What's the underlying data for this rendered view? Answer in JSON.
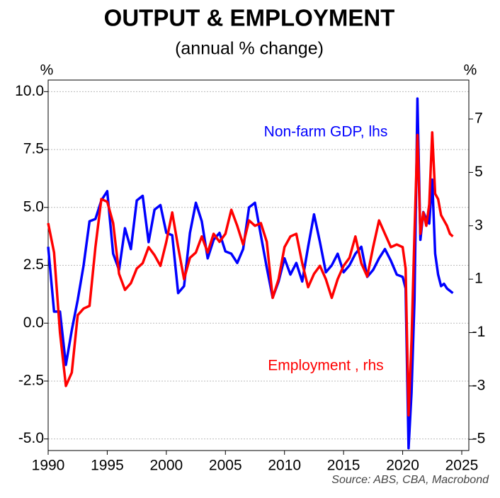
{
  "chart_data": {
    "type": "line",
    "title": "OUTPUT & EMPLOYMENT",
    "subtitle": "(annual % change)",
    "y_unit": "%",
    "y2_unit": "%",
    "source": "Source: ABS, CBA, Macrobond",
    "grid": true,
    "x": [
      1990,
      1990.5,
      1991,
      1991.5,
      1992,
      1992.5,
      1993,
      1993.5,
      1994,
      1994.5,
      1995,
      1995.5,
      1996,
      1996.5,
      1997,
      1997.5,
      1998,
      1998.5,
      1999,
      1999.5,
      2000,
      2000.5,
      2001,
      2001.5,
      2002,
      2002.5,
      2003,
      2003.5,
      2004,
      2004.5,
      2005,
      2005.5,
      2006,
      2006.5,
      2007,
      2007.5,
      2008,
      2008.5,
      2009,
      2009.5,
      2010,
      2010.5,
      2011,
      2011.5,
      2012,
      2012.5,
      2013,
      2013.5,
      2014,
      2014.5,
      2015,
      2015.5,
      2016,
      2016.5,
      2017,
      2017.5,
      2018,
      2018.5,
      2019,
      2019.5,
      2020,
      2020.25,
      2020.5,
      2020.75,
      2021,
      2021.25,
      2021.5,
      2021.75,
      2022,
      2022.25,
      2022.5,
      2022.75,
      2023,
      2023.25,
      2023.5,
      2023.75,
      2024,
      2024.25
    ],
    "series": [
      {
        "name": "Non-farm GDP, lhs",
        "color": "#0000ff",
        "axis": "y",
        "values": [
          3.3,
          0.5,
          0.5,
          -1.8,
          -0.3,
          1.0,
          2.5,
          4.4,
          4.5,
          5.3,
          5.7,
          3.0,
          2.3,
          4.1,
          3.2,
          5.3,
          5.5,
          3.5,
          4.9,
          5.1,
          3.9,
          3.8,
          1.3,
          1.6,
          3.9,
          5.2,
          4.4,
          2.8,
          3.6,
          3.9,
          3.1,
          3.0,
          2.6,
          3.2,
          5.0,
          5.2,
          3.8,
          2.4,
          1.1,
          1.8,
          2.8,
          2.1,
          2.6,
          1.8,
          3.3,
          4.7,
          3.5,
          2.2,
          2.5,
          3.0,
          2.2,
          2.5,
          3.0,
          3.3,
          2.0,
          2.3,
          2.8,
          3.2,
          2.7,
          2.1,
          2.0,
          1.5,
          -5.4,
          -3.0,
          1.0,
          9.7,
          3.6,
          4.8,
          4.5,
          4.3,
          6.2,
          3.0,
          2.1,
          1.6,
          1.7,
          1.5,
          1.4,
          1.3
        ]
      },
      {
        "name": "Employment , rhs",
        "color": "#ff0000",
        "axis": "y2",
        "values": [
          3.1,
          2.0,
          -1.0,
          -3.0,
          -2.5,
          -0.35,
          -0.1,
          0,
          2.2,
          4.0,
          3.9,
          3.1,
          1.2,
          0.6,
          0.85,
          1.4,
          1.6,
          2.2,
          1.9,
          1.5,
          2.4,
          3.5,
          2.2,
          1.0,
          1.8,
          2.0,
          2.6,
          2.0,
          2.7,
          2.4,
          2.7,
          3.6,
          3.0,
          2.3,
          3.2,
          3.0,
          3.1,
          2.4,
          0.3,
          1.0,
          2.2,
          2.6,
          2.7,
          1.6,
          0.7,
          1.2,
          1.5,
          1.0,
          0.3,
          1.0,
          1.5,
          1.8,
          2.6,
          1.6,
          1.1,
          2.2,
          3.2,
          2.7,
          2.2,
          2.3,
          2.2,
          1.4,
          -4.1,
          -1.3,
          2.7,
          6.4,
          2.7,
          3.5,
          3.0,
          3.8,
          6.5,
          4.2,
          4.0,
          3.4,
          3.2,
          3.0,
          2.7,
          2.6
        ]
      }
    ],
    "xlim": [
      1990,
      2025.6
    ],
    "xticks": [
      1990,
      1995,
      2000,
      2005,
      2010,
      2015,
      2020,
      2025
    ],
    "ylim": [
      -5.5,
      10.5
    ],
    "yticks": [
      {
        "value": -5,
        "label": "-5.0"
      },
      {
        "value": -2.5,
        "label": "-2.5"
      },
      {
        "value": 0,
        "label": "0.0"
      },
      {
        "value": 2.5,
        "label": "2.5"
      },
      {
        "value": 5,
        "label": "5.0"
      },
      {
        "value": 7.5,
        "label": "7.5"
      },
      {
        "value": 10,
        "label": "10.0"
      }
    ],
    "y2lim": [
      -5.42,
      8.46
    ],
    "y2ticks": [
      -5,
      -3,
      -1,
      1,
      3,
      5,
      7
    ]
  }
}
